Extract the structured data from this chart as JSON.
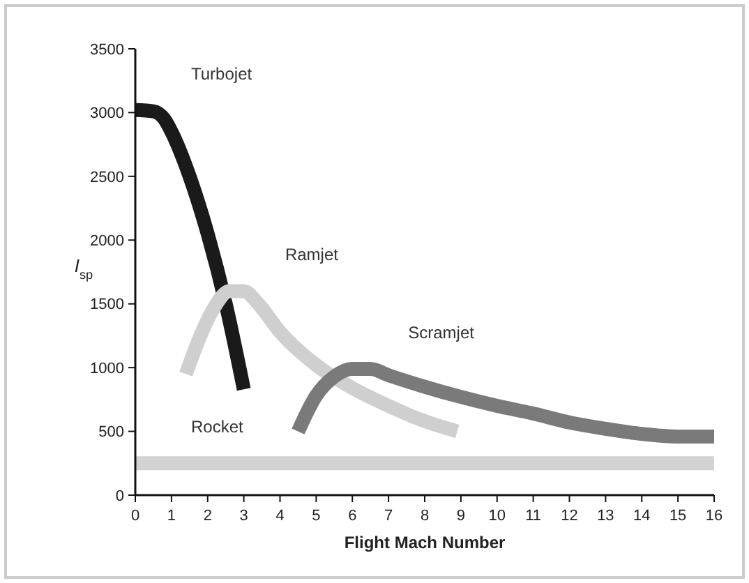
{
  "chart_data": {
    "type": "line",
    "xlabel": "Flight Mach Number",
    "ylabel": "I$_{sp}$",
    "xlim": [
      0,
      16
    ],
    "xticks": [
      0,
      1,
      2,
      3,
      4,
      5,
      6,
      7,
      8,
      9,
      10,
      11,
      12,
      13,
      14,
      15,
      16
    ],
    "ylim": [
      0,
      3500
    ],
    "yticks": [
      0,
      500,
      1000,
      1500,
      2000,
      2500,
      3000,
      3500
    ],
    "grid": false,
    "marker": "none",
    "line_style": "solid",
    "series": [
      {
        "name": "Turbojet",
        "color": "#1a1a1a",
        "x": [
          0,
          0.5,
          0.8,
          1,
          1.5,
          2,
          2.5,
          3
        ],
        "values": [
          3020,
          3010,
          2950,
          2850,
          2500,
          2050,
          1500,
          830
        ]
      },
      {
        "name": "Ramjet",
        "color": "#cfcfcf",
        "x": [
          1.4,
          1.8,
          2.2,
          2.6,
          3,
          3.4,
          4,
          5,
          6,
          7,
          8,
          8.9
        ],
        "values": [
          950,
          1250,
          1480,
          1600,
          1600,
          1500,
          1280,
          1020,
          840,
          700,
          580,
          500
        ]
      },
      {
        "name": "Scramjet",
        "color": "#7a7a7a",
        "x": [
          4.5,
          5,
          5.5,
          6,
          6.5,
          7,
          8,
          9,
          10,
          11,
          12,
          13,
          14,
          15,
          16
        ],
        "values": [
          500,
          780,
          930,
          990,
          990,
          940,
          850,
          770,
          700,
          640,
          570,
          520,
          480,
          460,
          460
        ]
      },
      {
        "name": "Rocket",
        "color": "#d3d3d3",
        "x": [
          0,
          16
        ],
        "values": [
          250,
          250
        ]
      }
    ]
  }
}
